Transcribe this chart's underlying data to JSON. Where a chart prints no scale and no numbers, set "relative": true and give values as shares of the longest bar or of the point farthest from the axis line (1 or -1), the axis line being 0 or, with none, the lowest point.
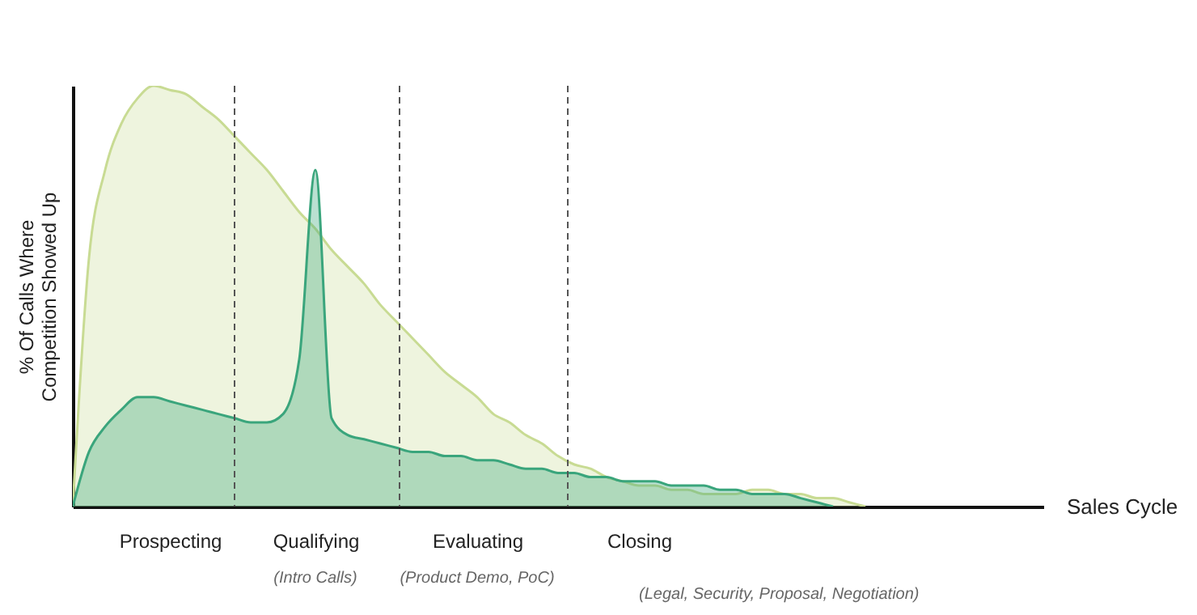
{
  "chart_data": {
    "type": "area",
    "relative": true,
    "xlabel": "Sales Cycle",
    "ylabel": "% Of Calls Where Competition Showed Up",
    "categories": [
      null,
      null,
      null,
      null,
      null,
      null,
      "Prospecting",
      null,
      null,
      null,
      null,
      null,
      null,
      null,
      null,
      "Qualifying",
      null,
      null,
      null,
      null,
      null,
      null,
      null,
      null,
      null,
      "Evaluating",
      null,
      null,
      null,
      null,
      null,
      null,
      null,
      null,
      null,
      "Closing",
      null,
      null,
      null,
      null,
      null,
      null,
      null,
      null,
      null,
      null,
      null,
      null,
      null,
      null,
      null,
      null,
      null,
      null,
      null,
      null,
      null,
      null,
      null,
      null,
      null
    ],
    "series": [
      {
        "color": "#c8db93",
        "values": [
          0,
          0.59,
          0.8,
          0.91,
          0.97,
          1,
          0.99,
          0.98,
          0.95,
          0.92,
          0.88,
          0.84,
          0.8,
          0.75,
          0.7,
          0.66,
          0.61,
          0.57,
          0.53,
          0.48,
          0.44,
          0.4,
          0.36,
          0.32,
          0.29,
          0.26,
          0.22,
          0.2,
          0.17,
          0.15,
          0.12,
          0.1,
          0.09,
          0.07,
          0.06,
          0.05,
          0.05,
          0.04,
          0.04,
          0.03,
          0.03,
          0.03,
          0.04,
          0.04,
          0.03,
          0.03,
          0.02,
          0.02,
          0.01,
          0,
          null,
          null,
          null,
          null,
          null,
          null,
          null,
          null,
          null,
          null,
          null
        ]
      },
      {
        "color": "#3aa57c",
        "values": [
          0,
          0.13,
          0.19,
          0.23,
          0.26,
          0.26,
          0.25,
          0.24,
          0.23,
          0.22,
          0.21,
          0.2,
          0.2,
          0.22,
          0.35,
          0.8,
          0.21,
          0.17,
          0.16,
          0.15,
          0.14,
          0.13,
          0.13,
          0.12,
          0.12,
          0.11,
          0.11,
          0.1,
          0.09,
          0.09,
          0.08,
          0.08,
          0.07,
          0.07,
          0.06,
          0.06,
          0.06,
          0.05,
          0.05,
          0.05,
          0.04,
          0.04,
          0.03,
          0.03,
          0.03,
          0.02,
          0.01,
          0,
          null,
          null,
          null,
          null,
          null,
          null,
          null,
          null,
          null,
          null,
          null,
          null,
          null
        ]
      }
    ],
    "annotations": [
      "(Intro Calls)",
      "(Product Demo, PoC)",
      "(Legal, Security, Proposal, Negotiation)"
    ],
    "grid": false
  }
}
